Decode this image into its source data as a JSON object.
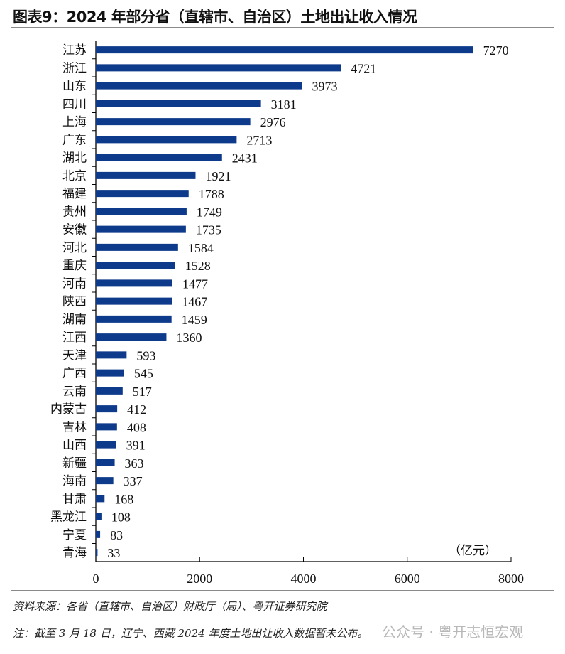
{
  "chart_data": {
    "type": "bar",
    "orientation": "horizontal",
    "title": "图表9：2024 年部分省（直辖市、自治区）土地出让收入情况",
    "unit_label": "（亿元）",
    "categories": [
      "江苏",
      "浙江",
      "山东",
      "四川",
      "上海",
      "广东",
      "湖北",
      "北京",
      "福建",
      "贵州",
      "安徽",
      "河北",
      "重庆",
      "河南",
      "陕西",
      "湖南",
      "江西",
      "天津",
      "广西",
      "云南",
      "内蒙古",
      "吉林",
      "山西",
      "新疆",
      "海南",
      "甘肃",
      "黑龙江",
      "宁夏",
      "青海"
    ],
    "values": [
      7270,
      4721,
      3973,
      3181,
      2976,
      2713,
      2431,
      1921,
      1788,
      1749,
      1735,
      1584,
      1528,
      1477,
      1467,
      1459,
      1360,
      593,
      545,
      517,
      412,
      408,
      391,
      363,
      337,
      168,
      108,
      83,
      33
    ],
    "xlim": [
      0,
      8000
    ],
    "xticks": [
      "0",
      "2000",
      "4000",
      "6000",
      "8000"
    ],
    "grid": false,
    "bar_color": "#0d3a8a"
  },
  "footer": {
    "source": "资料来源：各省（直辖市、自治区）财政厅（局）、粤开证券研究院",
    "note": "注：截至 3 月 18 日，辽宁、西藏 2024 年度土地出让收入数据暂未公布。",
    "watermark": "公众号 · 粤开志恒宏观"
  }
}
